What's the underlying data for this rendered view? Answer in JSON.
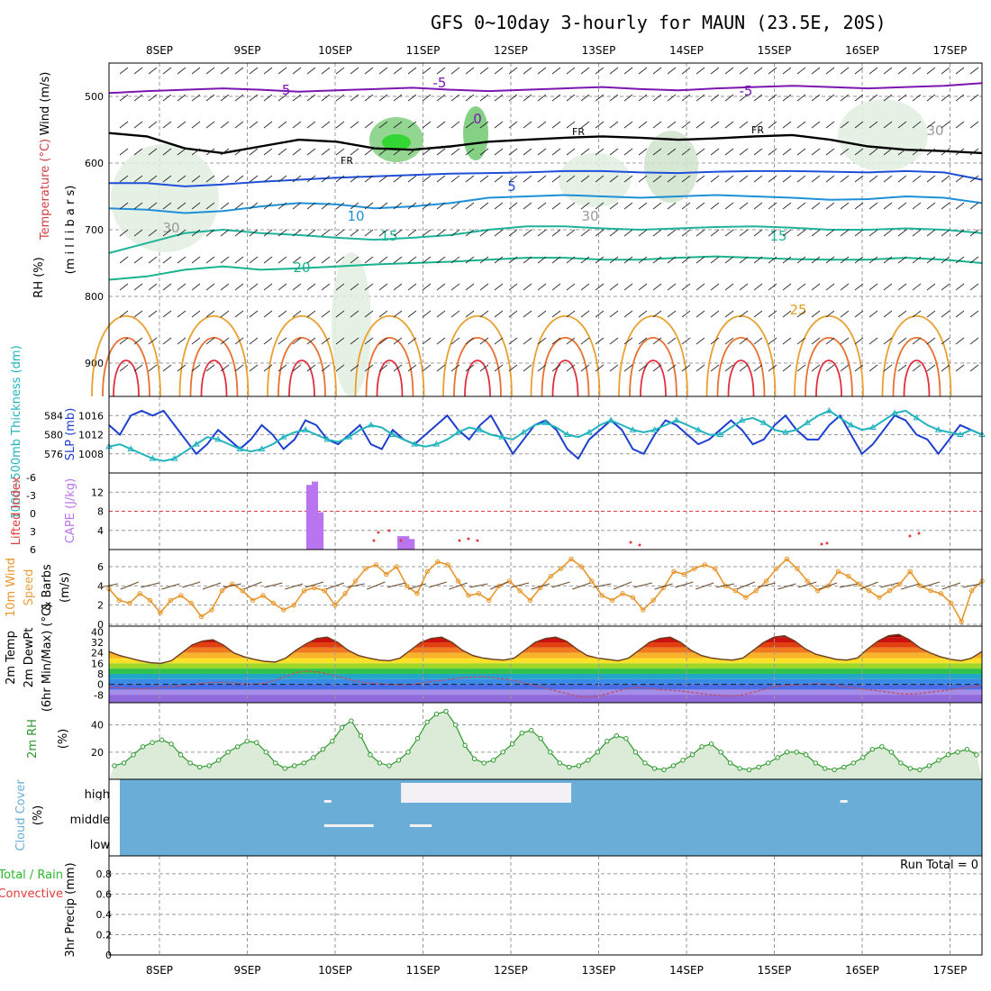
{
  "title": "GFS 0~10day 3-hourly for MAUN (23.5E, 20S)",
  "dates": [
    "8SEP",
    "9SEP",
    "10SEP",
    "11SEP",
    "12SEP",
    "13SEP",
    "14SEP",
    "15SEP",
    "16SEP",
    "17SEP"
  ],
  "colors": {
    "temp_cold": "#7b16b0",
    "temp_mid": "#1f4fd8",
    "temp_warm": "#1eb39a",
    "temp_hot": "#e0a020",
    "temp_vhot": "#e04010",
    "rh": "#2db82d",
    "slp": "#1d3fd0",
    "thickness": "#21b4be",
    "cape": "#b975ef",
    "li": "#e23b3b",
    "wind10": "#e8962a",
    "rh2m": "#2e9a2e",
    "cloud": "#6aaed8"
  },
  "chart_data": [
    {
      "type": "heatmap",
      "panel": "upper-air",
      "ylabel_parts": [
        "Wind (m/s)",
        "Temperature (°C)",
        "RH (%)"
      ],
      "ylabel_units": "(m i l l i b a r s)",
      "ylim": [
        450,
        950
      ],
      "yticks": [
        500,
        600,
        700,
        800,
        900
      ],
      "contour_labels": [
        "-5",
        "-5",
        "-5",
        "0",
        "FR",
        "FR",
        "FR",
        "5",
        "10",
        "15",
        "15",
        "20",
        "25",
        "30",
        "30",
        "30"
      ],
      "contours": [
        {
          "label": "-5",
          "p": [
            495,
            492,
            490,
            488,
            490,
            493,
            491,
            489,
            487,
            490,
            492,
            490,
            488,
            486,
            489,
            491,
            488,
            486,
            484,
            486,
            488,
            486,
            484,
            480
          ]
        },
        {
          "label": "FR",
          "p": [
            555,
            560,
            578,
            585,
            575,
            565,
            568,
            578,
            580,
            575,
            568,
            565,
            562,
            560,
            562,
            565,
            563,
            560,
            558,
            565,
            575,
            580,
            582,
            585
          ]
        },
        {
          "label": "5",
          "p": [
            630,
            630,
            635,
            632,
            628,
            625,
            622,
            620,
            618,
            616,
            615,
            614,
            612,
            612,
            614,
            615,
            613,
            612,
            612,
            613,
            614,
            612,
            614,
            625
          ]
        },
        {
          "label": "10",
          "p": [
            668,
            670,
            675,
            672,
            665,
            660,
            662,
            668,
            665,
            660,
            652,
            650,
            648,
            650,
            652,
            650,
            648,
            650,
            652,
            655,
            654,
            650,
            652,
            660
          ]
        },
        {
          "label": "15",
          "p": [
            735,
            720,
            705,
            700,
            705,
            708,
            712,
            715,
            712,
            708,
            700,
            695,
            695,
            698,
            700,
            698,
            696,
            695,
            697,
            700,
            700,
            698,
            700,
            705
          ]
        },
        {
          "label": "20",
          "p": [
            775,
            770,
            760,
            755,
            760,
            758,
            755,
            752,
            750,
            748,
            745,
            742,
            742,
            745,
            745,
            742,
            740,
            742,
            744,
            745,
            745,
            742,
            745,
            750
          ]
        }
      ]
    },
    {
      "type": "line",
      "panel": "slp-thickness",
      "ylabel_left": "1000~500mb Thickness (dm)",
      "ylabel_right": "SLP (mb)",
      "yticks_left": [
        576,
        580,
        584
      ],
      "yticks_right": [
        1008,
        1012,
        1016
      ],
      "series": [
        {
          "name": "SLP (mb)",
          "values": [
            1014,
            1012,
            1016,
            1017,
            1016,
            1017,
            1014,
            1011,
            1008,
            1010,
            1013,
            1011,
            1009,
            1011,
            1014,
            1012,
            1009,
            1011,
            1015,
            1014,
            1011,
            1010,
            1012,
            1014,
            1010,
            1009,
            1013,
            1011,
            1010,
            1012,
            1014,
            1016,
            1013,
            1011,
            1014,
            1016,
            1012,
            1008,
            1011,
            1014,
            1015,
            1013,
            1009,
            1007,
            1011,
            1013,
            1015,
            1013,
            1009,
            1008,
            1012,
            1015,
            1014,
            1012,
            1010,
            1011,
            1013,
            1015,
            1013,
            1010,
            1011,
            1014,
            1016,
            1013,
            1011,
            1011,
            1014,
            1016,
            1012,
            1008,
            1010,
            1013,
            1016,
            1015,
            1012,
            1011,
            1008,
            1011,
            1014,
            1013,
            1012
          ]
        },
        {
          "name": "Thickness (dm)",
          "values": [
            577.5,
            578,
            577,
            576,
            575,
            574.5,
            575,
            576.5,
            578,
            579.5,
            579,
            578,
            577,
            576.5,
            577,
            578,
            579.5,
            580.5,
            581,
            580,
            579,
            578.5,
            579.5,
            581,
            582,
            581.5,
            580,
            579,
            578,
            577.5,
            578,
            579,
            580.5,
            581.5,
            581,
            580,
            579.5,
            579,
            580.5,
            582,
            582.5,
            581.5,
            580,
            579.5,
            580.5,
            582,
            583,
            582,
            581,
            580.5,
            581,
            582,
            583,
            582,
            581,
            580,
            580,
            581.5,
            583,
            583.5,
            582.5,
            581,
            580.5,
            581,
            582.5,
            584,
            585,
            583.5,
            582,
            581,
            581.5,
            583,
            584.5,
            585,
            583.5,
            582,
            581,
            580.5,
            580,
            581,
            580
          ]
        }
      ]
    },
    {
      "type": "bar",
      "panel": "cape-li",
      "ylabel_left": "Lifted Index",
      "ylabel_right": "CAPE (J/kg)",
      "yticks_left": [
        "-6",
        "-3",
        "0",
        "3",
        "6"
      ],
      "yticks_right": [
        4,
        8,
        12
      ],
      "cape_bars": [
        {
          "t": 22.7,
          "value": 13.5
        },
        {
          "t": 23.2,
          "value": 14.2
        },
        {
          "t": 23.7,
          "value": 7.8
        },
        {
          "t": 31.0,
          "value": 2.8
        },
        {
          "t": 31.5,
          "value": 2.8
        },
        {
          "t": 32.0,
          "value": 2.2
        }
      ]
    },
    {
      "type": "line",
      "panel": "wind10m",
      "ylabel": "10m Wind Speed & Barbs (m/s)",
      "ylabel_parts": [
        "10m Wind",
        "Speed",
        "& Barbs",
        "(m/s)"
      ],
      "yticks": [
        0,
        2,
        4,
        6
      ],
      "ylim": [
        0,
        7.5
      ],
      "series": [
        {
          "name": "10m Wind Speed",
          "values": [
            3.7,
            2.5,
            2.2,
            3.2,
            2.5,
            1.2,
            2.5,
            3.0,
            2.2,
            0.8,
            1.5,
            3.5,
            4.2,
            3.5,
            2.5,
            3.0,
            2.2,
            1.5,
            2.0,
            3.5,
            3.8,
            3.5,
            2.0,
            3.2,
            4.5,
            5.8,
            6.2,
            5.2,
            6.0,
            4.0,
            3.2,
            5.5,
            6.5,
            6.2,
            4.5,
            3.0,
            3.2,
            2.5,
            4.0,
            4.5,
            3.5,
            2.5,
            3.8,
            5.0,
            5.8,
            6.8,
            6.0,
            4.5,
            3.0,
            2.5,
            3.2,
            2.8,
            1.5,
            2.5,
            3.8,
            5.5,
            5.2,
            5.8,
            6.2,
            5.8,
            4.0,
            3.5,
            2.8,
            3.5,
            4.5,
            5.8,
            6.8,
            5.8,
            4.5,
            3.5,
            4.0,
            5.5,
            5.0,
            4.2,
            3.5,
            2.8,
            3.5,
            4.2,
            5.5,
            4.0,
            3.5,
            3.2,
            2.2,
            0.3,
            3.5,
            4.5
          ]
        }
      ]
    },
    {
      "type": "area",
      "panel": "temp2m",
      "ylabel_parts": [
        "2m Temp",
        "2m DewPt",
        "(6hr Min/Max) (°C)"
      ],
      "yticks": [
        -8,
        0,
        8,
        16,
        24,
        32,
        40
      ],
      "ylim": [
        -14,
        43
      ],
      "series": [
        {
          "name": "2m Temp",
          "values": [
            25,
            22,
            20,
            18,
            16.5,
            16,
            18,
            24,
            30,
            33,
            34,
            30,
            24,
            21,
            19,
            17.5,
            17,
            20,
            26,
            31,
            35,
            36,
            32,
            26,
            22,
            20,
            18.5,
            18,
            20,
            26,
            32,
            35,
            36,
            32,
            26,
            22,
            20,
            19,
            18.5,
            20,
            26,
            32,
            35,
            36,
            33,
            27,
            22,
            20,
            19,
            18,
            20,
            26,
            32,
            35,
            36,
            32,
            26,
            22,
            20,
            19,
            18.5,
            20,
            26,
            32,
            36,
            37,
            33,
            27,
            23,
            21,
            19,
            18.5,
            20,
            27,
            33,
            37,
            38,
            34,
            28,
            24,
            21,
            19,
            18,
            20,
            25
          ]
        },
        {
          "name": "2m DewPt",
          "values": [
            -2,
            -2.5,
            -3,
            -3.5,
            -3,
            -2.5,
            -2,
            -1,
            0,
            1,
            1.5,
            1.5,
            1,
            0.5,
            0,
            1,
            3,
            6,
            9,
            10,
            9.5,
            8,
            6,
            4,
            2,
            1,
            0.5,
            0,
            -0.5,
            0,
            1,
            2,
            3,
            4,
            5,
            5.5,
            6,
            5,
            4,
            3,
            1,
            -1,
            -3,
            -5,
            -7,
            -9,
            -10,
            -9,
            -7,
            -5,
            -3,
            -2.5,
            -3,
            -4,
            -4.5,
            -5,
            -6,
            -7,
            -8,
            -8.5,
            -9,
            -8,
            -6,
            -4,
            -2,
            -1,
            -0.5,
            0,
            0.5,
            0,
            -1,
            -2,
            -3,
            -4,
            -5,
            -6,
            -7,
            -7.5,
            -7,
            -6,
            -5,
            -4,
            -3,
            -2,
            -1
          ]
        }
      ]
    },
    {
      "type": "area",
      "panel": "rh2m",
      "ylabel": "2m RH (%)",
      "yticks": [
        20,
        40
      ],
      "ylim": [
        0,
        55
      ],
      "series": [
        {
          "name": "2m RH",
          "values": [
            10,
            12,
            18,
            24,
            27,
            29,
            26,
            18,
            12,
            9,
            10,
            14,
            20,
            24,
            28,
            27,
            20,
            12,
            8,
            10,
            12,
            16,
            22,
            28,
            38,
            43,
            32,
            18,
            12,
            10,
            14,
            20,
            30,
            42,
            48,
            50,
            40,
            25,
            15,
            12,
            14,
            20,
            26,
            34,
            36,
            30,
            20,
            12,
            9,
            10,
            14,
            20,
            28,
            32,
            30,
            20,
            12,
            8,
            7,
            10,
            14,
            18,
            24,
            26,
            20,
            12,
            8,
            7,
            9,
            12,
            16,
            20,
            20,
            18,
            12,
            8,
            7,
            9,
            12,
            16,
            22,
            24,
            20,
            12,
            8,
            7,
            10,
            14,
            18,
            20,
            22,
            18
          ]
        }
      ]
    },
    {
      "type": "bar",
      "panel": "cloud-cover",
      "ylabel": "Cloud Cover (%)",
      "categories": [
        "high",
        "middle",
        "low"
      ],
      "cloud_blocks": [
        {
          "level": "high",
          "t0": 3.0,
          "t1": 3.4
        },
        {
          "level": "high",
          "t0": 24.0,
          "t1": 24.4
        },
        {
          "level": "high",
          "t0": 31.0,
          "t1": 40.0
        },
        {
          "level": "high",
          "t0": 38.5,
          "t1": 46.5
        },
        {
          "level": "high",
          "t0": 71.0,
          "t1": 71.4
        },
        {
          "level": "middle",
          "t0": 24.0,
          "t1": 27.0
        },
        {
          "level": "middle",
          "t0": 26.0,
          "t1": 28.5
        },
        {
          "level": "middle",
          "t0": 31.8,
          "t1": 33.8
        }
      ]
    },
    {
      "type": "bar",
      "panel": "precip",
      "ylabel_parts": [
        "Total / Rain",
        "Convective",
        "3hr Precip (mm)"
      ],
      "yticks": [
        0,
        0.2,
        0.4,
        0.6,
        0.8
      ],
      "ylim": [
        0,
        0.95
      ],
      "annotation": "Run Total = 0"
    }
  ]
}
